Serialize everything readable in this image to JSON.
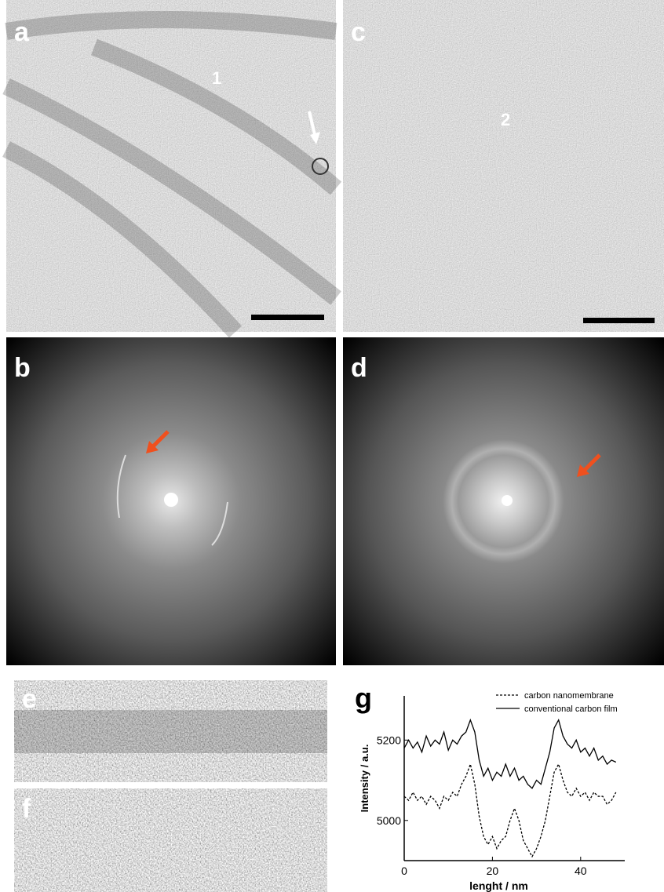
{
  "panels": [
    {
      "label": "a"
    },
    {
      "label": "b"
    },
    {
      "label": "c"
    },
    {
      "label": "d"
    },
    {
      "label": "e"
    },
    {
      "label": "f"
    },
    {
      "label": "g"
    }
  ],
  "annotations": [
    {
      "text": "1"
    },
    {
      "text": "2"
    }
  ],
  "chart_data": {
    "type": "line",
    "ylabel": "Intensity / a.u.",
    "xlabel": "lenght / nm",
    "x": [
      0,
      1,
      2,
      3,
      4,
      5,
      6,
      7,
      8,
      9,
      10,
      11,
      12,
      13,
      14,
      15,
      16,
      17,
      18,
      19,
      20,
      21,
      22,
      23,
      24,
      25,
      26,
      27,
      28,
      29,
      30,
      31,
      32,
      33,
      34,
      35,
      36,
      37,
      38,
      39,
      40,
      41,
      42,
      43,
      44,
      45,
      46,
      47,
      48
    ],
    "series": [
      {
        "name": "carbon nanomembrane",
        "color": "#000000",
        "dash": "dashed",
        "values": [
          5060,
          5050,
          5070,
          5050,
          5060,
          5040,
          5060,
          5050,
          5030,
          5060,
          5050,
          5070,
          5060,
          5090,
          5110,
          5140,
          5090,
          5010,
          4960,
          4940,
          4960,
          4930,
          4950,
          4960,
          5000,
          5030,
          5000,
          4950,
          4930,
          4910,
          4930,
          4960,
          5000,
          5060,
          5120,
          5140,
          5100,
          5070,
          5060,
          5080,
          5060,
          5070,
          5050,
          5070,
          5060,
          5060,
          5040,
          5050,
          5070
        ]
      },
      {
        "name": "conventional carbon film",
        "color": "#000000",
        "dash": "solid",
        "values": [
          5180,
          5200,
          5180,
          5195,
          5170,
          5210,
          5185,
          5200,
          5190,
          5220,
          5175,
          5200,
          5190,
          5210,
          5220,
          5250,
          5220,
          5150,
          5110,
          5130,
          5100,
          5120,
          5110,
          5140,
          5110,
          5130,
          5100,
          5110,
          5090,
          5080,
          5100,
          5090,
          5130,
          5170,
          5230,
          5250,
          5210,
          5190,
          5180,
          5200,
          5170,
          5180,
          5160,
          5180,
          5150,
          5160,
          5140,
          5150,
          5145
        ]
      }
    ],
    "xlim": [
      0,
      50
    ],
    "ylim": [
      4900,
      5310
    ],
    "xticks": [
      0,
      20,
      40
    ],
    "yticks": [
      5000,
      5200
    ],
    "grid": false
  }
}
